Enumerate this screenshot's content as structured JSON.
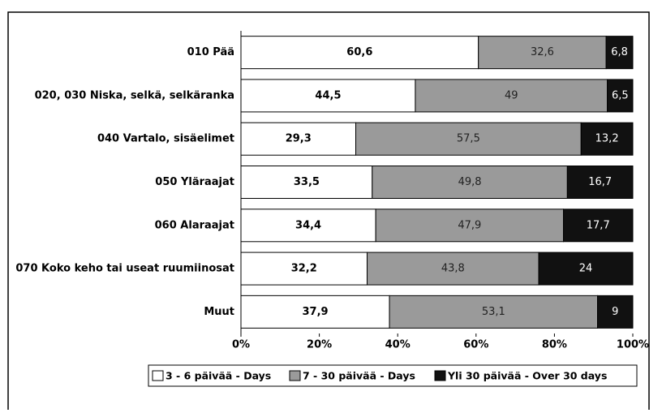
{
  "chart_data": {
    "type": "stacked-bar-horizontal",
    "categories": [
      "010 Pää",
      "020, 030 Niska, selkä, selkäranka",
      "040 Vartalo, sisäelimet",
      "050 Yläraajat",
      "060 Alaraajat",
      "070 Koko keho tai useat ruumiinosat",
      "Muut"
    ],
    "series": [
      {
        "name": "3 - 6 päivää - Days",
        "color": "#ffffff",
        "values": [
          60.6,
          44.5,
          29.3,
          33.5,
          34.4,
          32.2,
          37.9
        ],
        "value_labels": [
          "60,6",
          "44,5",
          "29,3",
          "33,5",
          "34,4",
          "32,2",
          "37,9"
        ]
      },
      {
        "name": "7 - 30 päivää - Days",
        "color": "#9a9a9a",
        "values": [
          32.6,
          49,
          57.5,
          49.8,
          47.9,
          43.8,
          53.1
        ],
        "value_labels": [
          "32,6",
          "49",
          "57,5",
          "49,8",
          "47,9",
          "43,8",
          "53,1"
        ]
      },
      {
        "name": "Yli 30 päivää - Over 30 days",
        "color": "#111111",
        "values": [
          6.8,
          6.5,
          13.2,
          16.7,
          17.7,
          24,
          9
        ],
        "value_labels": [
          "6,8",
          "6,5",
          "13,2",
          "16,7",
          "17,7",
          "24",
          "9"
        ]
      }
    ],
    "xlim": [
      0,
      100
    ],
    "xticks": [
      {
        "value": 0,
        "label": "0%"
      },
      {
        "value": 20,
        "label": "20%"
      },
      {
        "value": 40,
        "label": "40%"
      },
      {
        "value": 60,
        "label": "60%"
      },
      {
        "value": 80,
        "label": "80%"
      },
      {
        "value": 100,
        "label": "100%"
      }
    ]
  }
}
